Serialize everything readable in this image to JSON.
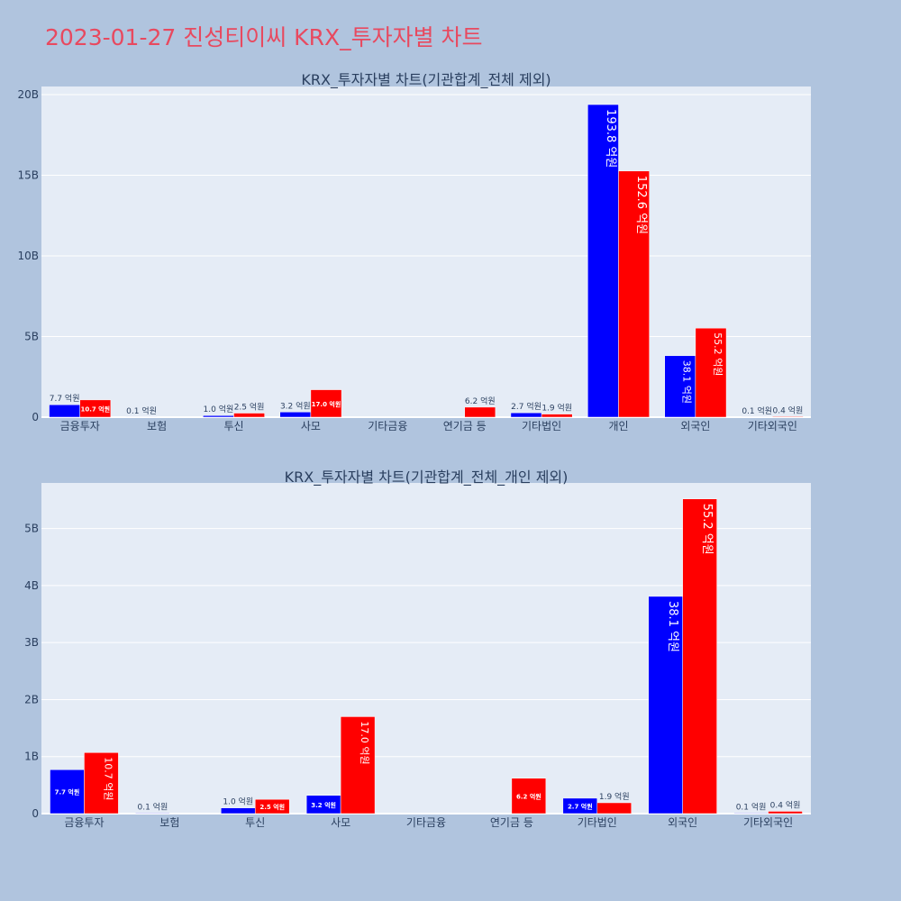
{
  "page_title": "2023-01-27 진성티이씨 KRX_투자자별 차트",
  "colors": {
    "series1": "#0000ff",
    "series2": "#ff0000",
    "plot_bg": "#e5ecf6",
    "page_bg": "#b0c4de",
    "title": "#e8495f"
  },
  "chart_data": [
    {
      "type": "bar",
      "title": "KRX_투자자별 차트(기관합계_전체 제외)",
      "categories": [
        "금융투자",
        "보험",
        "투신",
        "사모",
        "기타금융",
        "연기금 등",
        "기타법인",
        "개인",
        "외국인",
        "기타외국인"
      ],
      "series": [
        {
          "values": [
            0.77,
            0.01,
            0.1,
            0.32,
            0,
            0,
            0.27,
            19.38,
            3.81,
            0.01
          ],
          "labels": [
            "7.7 억원",
            "0.1 억원",
            "1.0 억원",
            "3.2 억원",
            "",
            "",
            "2.7 억원",
            "193.8 억원",
            "38.1 억원",
            "0.1 억원"
          ]
        },
        {
          "values": [
            1.07,
            0,
            0.25,
            1.7,
            0,
            0.62,
            0.19,
            15.26,
            5.52,
            0.04
          ],
          "labels": [
            "10.7 억원",
            "",
            "2.5 억원",
            "17.0 억원",
            "",
            "6.2 억원",
            "1.9 억원",
            "152.6 억원",
            "55.2 억원",
            "0.4 억원"
          ]
        }
      ],
      "yunit": "B",
      "ylim": [
        0,
        20.5
      ],
      "yticks": [
        0,
        5,
        10,
        15,
        20
      ],
      "ytick_labels": [
        "0",
        "5B",
        "10B",
        "15B",
        "20B"
      ],
      "grid": true,
      "legend": "none"
    },
    {
      "type": "bar",
      "title": "KRX_투자자별 차트(기관합계_전체_개인 제외)",
      "categories": [
        "금융투자",
        "보험",
        "투신",
        "사모",
        "기타금융",
        "연기금 등",
        "기타법인",
        "외국인",
        "기타외국인"
      ],
      "series": [
        {
          "values": [
            0.77,
            0.01,
            0.1,
            0.32,
            0,
            0,
            0.27,
            3.81,
            0.01
          ],
          "labels": [
            "7.7 억원",
            "0.1 억원",
            "1.0 억원",
            "3.2 억원",
            "",
            "",
            "2.7 억원",
            "38.1 억원",
            "0.1 억원"
          ]
        },
        {
          "values": [
            1.07,
            0,
            0.25,
            1.7,
            0,
            0.62,
            0.19,
            5.52,
            0.04
          ],
          "labels": [
            "10.7 억원",
            "",
            "2.5 억원",
            "17.0 억원",
            "",
            "6.2 억원",
            "1.9 억원",
            "55.2 억원",
            "0.4 억원"
          ]
        }
      ],
      "yunit": "B",
      "ylim": [
        0,
        5.8
      ],
      "yticks": [
        0,
        1,
        2,
        3,
        4,
        5
      ],
      "ytick_labels": [
        "0",
        "1B",
        "2B",
        "3B",
        "4B",
        "5B"
      ],
      "grid": true,
      "legend": "none"
    }
  ]
}
